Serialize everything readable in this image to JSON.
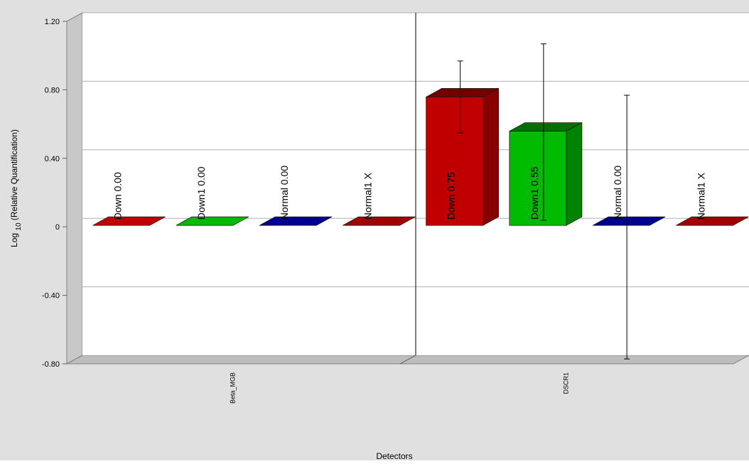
{
  "colors": {
    "frame": "#e0e0e0",
    "plot_bg": "#ffffff",
    "grid": "#b0b0b0",
    "wall_side": "#c8c8c8",
    "floor": "#bdbdbd",
    "text": "#000000",
    "errorbar": "#000000",
    "down": "#c00000",
    "down1": "#00bb00",
    "normal": "#000090",
    "normal1": "#a00000"
  },
  "chart_data": {
    "type": "bar",
    "title": "",
    "xlabel": "Detectors",
    "ylabel_main": "Log",
    "ylabel_sub": "10",
    "ylabel_rest": "(Relative Quantification)",
    "ylim": [
      -0.8,
      1.2
    ],
    "yticks": [
      1.2,
      0.8,
      0.4,
      0,
      -0.4,
      -0.8
    ],
    "ytick_labels": [
      "1.20",
      "0.80",
      "0.40",
      "0",
      "-0.40",
      "-0.80"
    ],
    "grid": true,
    "style": "3d",
    "categories": [
      "Beta_MGB",
      "DSCR1"
    ],
    "series": [
      {
        "name": "Down",
        "color_key": "down",
        "values": [
          0.0,
          0.75
        ],
        "labels": [
          "Down 0.00",
          "Down 0.75"
        ],
        "error_low": [
          null,
          0.54
        ],
        "error_high": [
          null,
          0.96
        ]
      },
      {
        "name": "Down1",
        "color_key": "down1",
        "values": [
          0.0,
          0.55
        ],
        "labels": [
          "Down1 0.00",
          "Down1 0.55"
        ],
        "error_low": [
          null,
          0.03
        ],
        "error_high": [
          null,
          1.06
        ]
      },
      {
        "name": "Normal",
        "color_key": "normal",
        "values": [
          0.0,
          0.0
        ],
        "labels": [
          "Normal 0.00",
          "Normal 0.00"
        ],
        "error_low": [
          null,
          -0.78
        ],
        "error_high": [
          null,
          0.76
        ]
      },
      {
        "name": "Normal1",
        "color_key": "normal1",
        "values": [
          null,
          null
        ],
        "labels": [
          "Normal1 X",
          "Normal1 X"
        ],
        "error_low": [
          null,
          null
        ],
        "error_high": [
          null,
          null
        ]
      }
    ]
  }
}
